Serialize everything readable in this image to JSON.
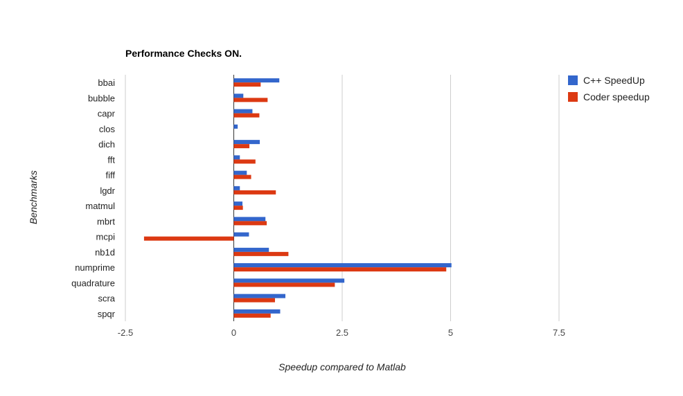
{
  "chart_data": {
    "type": "bar",
    "orientation": "horizontal",
    "title": "Performance Checks ON.",
    "xlabel": "Speedup compared to Matlab",
    "ylabel": "Benchmarks",
    "xlim": [
      -2.5,
      7.5
    ],
    "xticks": [
      "-2.5",
      "0",
      "2.5",
      "5",
      "7.5"
    ],
    "xtick_values": [
      -2.5,
      0,
      2.5,
      5,
      7.5
    ],
    "grid": true,
    "legend_position": "right",
    "categories": [
      "bbai",
      "bubble",
      "capr",
      "clos",
      "dich",
      "fft",
      "fiff",
      "lgdr",
      "matmul",
      "mbrt",
      "mcpi",
      "nb1d",
      "numprime",
      "quadrature",
      "scra",
      "spqr"
    ],
    "series": [
      {
        "name": "C++ SpeedUp",
        "color": "#3366cc",
        "values": [
          1.05,
          0.22,
          0.43,
          0.09,
          0.6,
          0.14,
          0.3,
          0.14,
          0.2,
          0.73,
          0.35,
          0.81,
          5.02,
          2.55,
          1.19,
          1.07
        ]
      },
      {
        "name": "Coder speedup",
        "color": "#dc3912",
        "values": [
          0.62,
          0.78,
          0.59,
          0.0,
          0.36,
          0.5,
          0.4,
          0.97,
          0.21,
          0.76,
          -2.07,
          1.26,
          4.9,
          2.33,
          0.95,
          0.85
        ]
      }
    ]
  }
}
